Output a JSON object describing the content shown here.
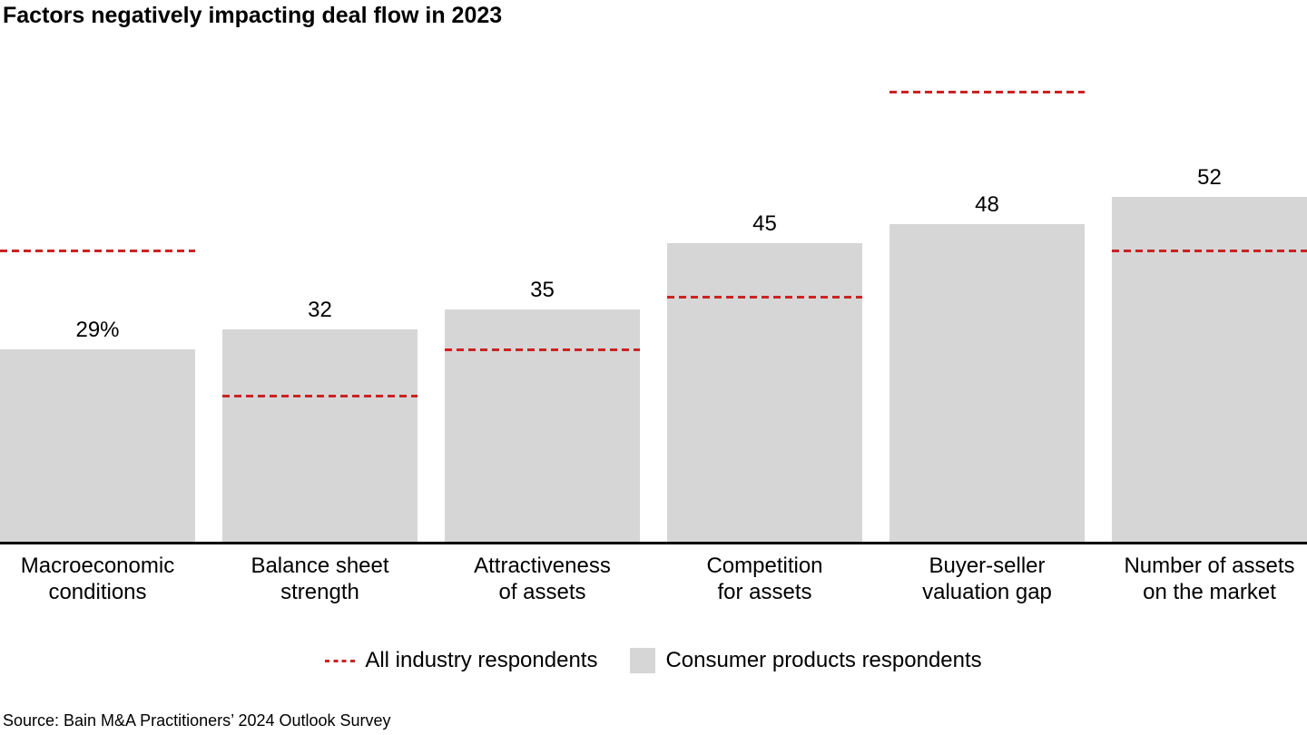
{
  "title": "Factors negatively impacting deal flow in 2023",
  "source": "Source: Bain M&A Practitioners’ 2024 Outlook Survey",
  "legend": [
    {
      "swatch": "red-dashed-line",
      "label": "All industry respondents"
    },
    {
      "swatch": "gray-box",
      "label": "Consumer products respondents"
    }
  ],
  "colors": {
    "bar": "#d6d6d6",
    "dash_line": "#cc2222",
    "axis": "#000000",
    "text": "#000000"
  },
  "chart_data": {
    "type": "bar",
    "title": "Factors negatively impacting deal flow in 2023",
    "unit": "%",
    "categories": [
      "Macroeconomic\nconditions",
      "Balance sheet\nstrength",
      "Attractiveness\nof assets",
      "Competition\nfor assets",
      "Buyer-seller\nvaluation gap",
      "Number of assets\non the market"
    ],
    "series": [
      {
        "name": "Consumer products respondents",
        "style": "gray-bar",
        "values": [
          29,
          32,
          35,
          45,
          48,
          52
        ],
        "data_labels": [
          "29%",
          "32",
          "35",
          "45",
          "48",
          "52"
        ]
      },
      {
        "name": "All industry respondents",
        "style": "red-dashed-overlay-line",
        "values": [
          44,
          22,
          29,
          37,
          68,
          44
        ],
        "values_estimated_from_pixels": true,
        "data_labels_shown": false
      }
    ],
    "xlabel": "",
    "ylabel": "",
    "ylim": [
      0,
      82
    ],
    "grid": false,
    "y_axis_shown": false,
    "legend_position": "bottom-center"
  }
}
